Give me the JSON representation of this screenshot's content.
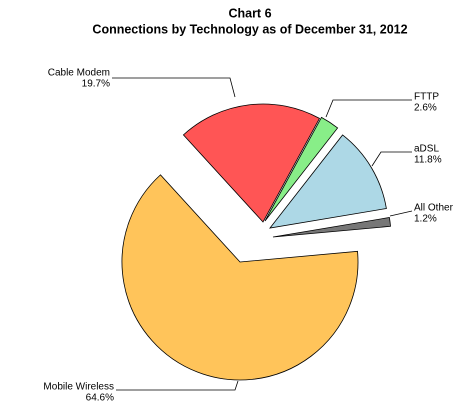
{
  "chart_data": {
    "type": "pie",
    "title": "Chart 6",
    "subtitle": "Connections by Technology as of December 31, 2012",
    "categories": [
      "Cable Modem",
      "FTTP",
      "aDSL",
      "All Other",
      "Mobile Wireless"
    ],
    "values": [
      19.7,
      2.6,
      11.8,
      1.2,
      64.6
    ],
    "value_labels": [
      "19.7%",
      "2.6%",
      "11.8%",
      "1.2%",
      "64.6%"
    ],
    "colors": [
      "#ff5555",
      "#88ee88",
      "#add8e6",
      "#777777",
      "#ffc45a"
    ]
  }
}
